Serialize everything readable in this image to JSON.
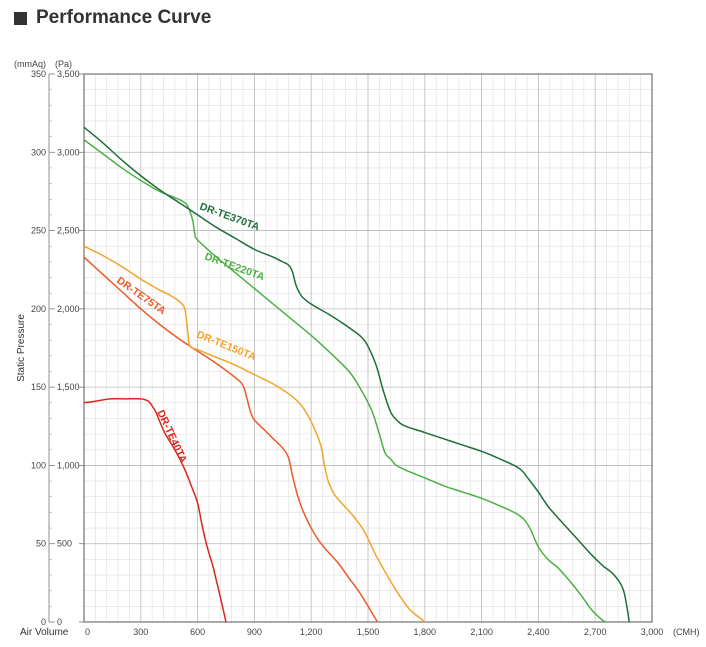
{
  "header": {
    "title": "Performance Curve"
  },
  "chart_data": {
    "type": "line",
    "title": "Performance Curve",
    "xlabel": "Air Volume",
    "x_unit": "(CMH)",
    "ylabel": "Static Pressure",
    "y_unit_left": "(mmAq)",
    "y_unit_right": "(Pa)",
    "xlim": [
      0,
      3000
    ],
    "ylim_pa": [
      0,
      3500
    ],
    "ylim_mmaq": [
      0,
      350
    ],
    "grid": true,
    "x_ticks": [
      "0",
      "300",
      "600",
      "900",
      "1,200",
      "1,500",
      "1,800",
      "2,100",
      "2,400",
      "2,700",
      "3,000"
    ],
    "y_ticks_mmaq": [
      "0",
      "50",
      "100",
      "150",
      "200",
      "250",
      "300",
      "350"
    ],
    "y_ticks_pa": [
      "0",
      "500",
      "1,000",
      "1,500",
      "2,000",
      "2,500",
      "3,000",
      "3,500"
    ],
    "series": [
      {
        "name": "DR-TE40TA",
        "color": "#d9271d",
        "label_angle": 65,
        "x": [
          0,
          60,
          140,
          220,
          300,
          340,
          360,
          380,
          400,
          430,
          480,
          530,
          570,
          600,
          620,
          640,
          660,
          680,
          700,
          720,
          735,
          750
        ],
        "y": [
          1400,
          1410,
          1425,
          1425,
          1425,
          1410,
          1380,
          1340,
          1280,
          1200,
          1100,
          980,
          860,
          760,
          640,
          530,
          440,
          360,
          260,
          160,
          80,
          0
        ]
      },
      {
        "name": "DR-TE75TA",
        "color": "#ee5a28",
        "label_angle": 35,
        "x": [
          0,
          100,
          200,
          300,
          400,
          500,
          600,
          700,
          800,
          840,
          860,
          880,
          900,
          950,
          1000,
          1050,
          1080,
          1100,
          1130,
          1160,
          1200,
          1240,
          1280,
          1340,
          1400,
          1460,
          1520,
          1550
        ],
        "y": [
          2330,
          2220,
          2110,
          2000,
          1900,
          1810,
          1730,
          1650,
          1560,
          1510,
          1430,
          1340,
          1290,
          1230,
          1170,
          1110,
          1050,
          940,
          800,
          700,
          600,
          520,
          460,
          380,
          280,
          180,
          60,
          0
        ]
      },
      {
        "name": "DR-TE150TA",
        "color": "#f4a32c",
        "label_angle": 22,
        "x": [
          0,
          100,
          200,
          300,
          400,
          450,
          500,
          530,
          540,
          550,
          560,
          600,
          700,
          800,
          900,
          1000,
          1100,
          1150,
          1200,
          1250,
          1270,
          1290,
          1320,
          1360,
          1420,
          1480,
          1540,
          1600,
          1660,
          1720,
          1780,
          1800
        ],
        "y": [
          2400,
          2340,
          2270,
          2190,
          2120,
          2090,
          2050,
          2010,
          1940,
          1830,
          1760,
          1740,
          1690,
          1640,
          1580,
          1520,
          1440,
          1380,
          1280,
          1130,
          1000,
          900,
          820,
          760,
          680,
          580,
          430,
          300,
          180,
          80,
          20,
          0
        ]
      },
      {
        "name": "DR-TE220TA",
        "color": "#4cb043",
        "label_angle": 20,
        "x": [
          0,
          100,
          200,
          300,
          400,
          500,
          540,
          560,
          575,
          585,
          600,
          700,
          800,
          900,
          1000,
          1100,
          1200,
          1300,
          1400,
          1460,
          1520,
          1560,
          1590,
          1620,
          1650,
          1700,
          1800,
          1900,
          2000,
          2100,
          2200,
          2300,
          2350,
          2400,
          2450,
          2500,
          2560,
          2620,
          2680,
          2740,
          2760
        ],
        "y": [
          3080,
          2990,
          2900,
          2820,
          2750,
          2700,
          2670,
          2620,
          2560,
          2480,
          2440,
          2330,
          2230,
          2130,
          2030,
          1930,
          1830,
          1720,
          1600,
          1490,
          1350,
          1200,
          1080,
          1040,
          1000,
          970,
          920,
          870,
          830,
          790,
          740,
          680,
          610,
          480,
          400,
          350,
          270,
          180,
          80,
          10,
          0
        ]
      },
      {
        "name": "DR-TE370TA",
        "color": "#1f6e3c",
        "label_angle": 20,
        "x": [
          0,
          100,
          200,
          300,
          400,
          500,
          600,
          700,
          800,
          900,
          1000,
          1050,
          1080,
          1100,
          1120,
          1150,
          1200,
          1300,
          1400,
          1480,
          1540,
          1580,
          1620,
          1660,
          1700,
          1800,
          1900,
          2000,
          2100,
          2200,
          2300,
          2350,
          2400,
          2450,
          2500,
          2560,
          2620,
          2680,
          2740,
          2800,
          2850,
          2880
        ],
        "y": [
          3160,
          3060,
          2950,
          2850,
          2760,
          2680,
          2600,
          2520,
          2450,
          2380,
          2330,
          2300,
          2280,
          2240,
          2150,
          2080,
          2030,
          1960,
          1880,
          1800,
          1650,
          1480,
          1340,
          1280,
          1250,
          1210,
          1170,
          1130,
          1090,
          1040,
          980,
          910,
          830,
          740,
          670,
          590,
          510,
          430,
          360,
          300,
          200,
          0
        ]
      }
    ]
  }
}
